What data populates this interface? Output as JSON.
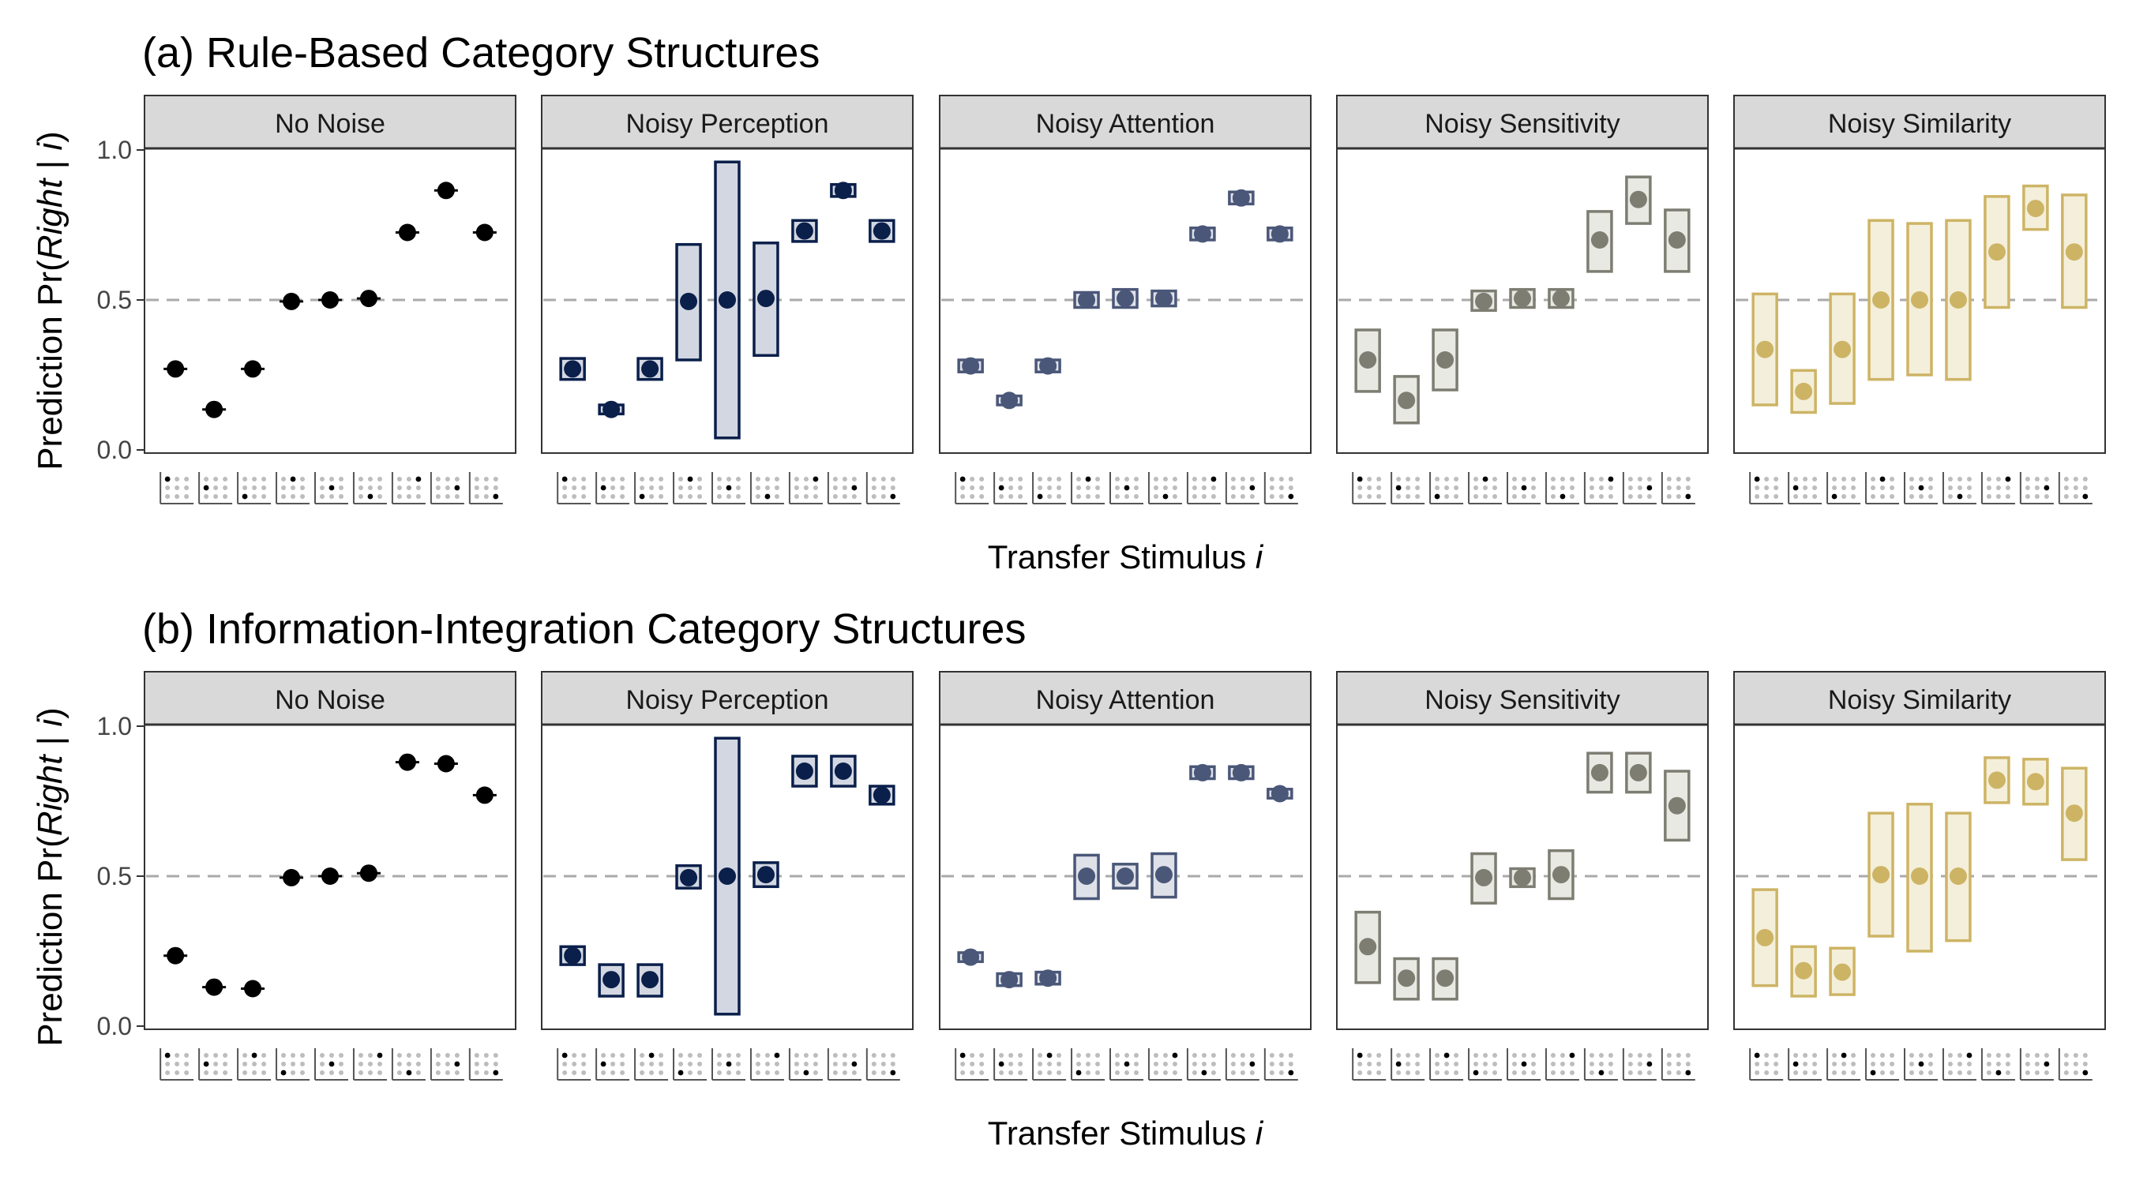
{
  "figure": {
    "y_axis_label": {
      "prefix": "Prediction Pr(",
      "italic": "Right",
      "sep": " | ",
      "var": "i",
      "suffix": ")"
    },
    "x_axis_label": {
      "text": "Transfer Stimulus ",
      "var": "i"
    },
    "reference_line": 0.5
  },
  "colors": {
    "No Noise": {
      "stroke": "#000000",
      "fill": "#000000",
      "point": "#000000"
    },
    "Noisy Perception": {
      "stroke": "#0a1f4a",
      "fill": "#d3d7e2",
      "point": "#0a1f4a"
    },
    "Noisy Attention": {
      "stroke": "#4a5778",
      "fill": "#dfe1e9",
      "point": "#4a5778"
    },
    "Noisy Sensitivity": {
      "stroke": "#7d7d72",
      "fill": "#e9e9e4",
      "point": "#7d7d72"
    },
    "Noisy Similarity": {
      "stroke": "#cdb465",
      "fill": "#f4efda",
      "point": "#cdb465"
    }
  },
  "chart_data": [
    {
      "type": "scatter",
      "title": "(a) Rule-Based Category Structures",
      "ylim": [
        0,
        1
      ],
      "yticks": [
        0.0,
        0.5,
        1.0
      ],
      "ytick_labels": [
        "0.0",
        "0.5",
        "1.0"
      ],
      "stimuli": [
        {
          "row": 0,
          "col": 0
        },
        {
          "row": 1,
          "col": 0
        },
        {
          "row": 2,
          "col": 0
        },
        {
          "row": 0,
          "col": 1
        },
        {
          "row": 1,
          "col": 1
        },
        {
          "row": 2,
          "col": 1
        },
        {
          "row": 0,
          "col": 2
        },
        {
          "row": 1,
          "col": 2
        },
        {
          "row": 2,
          "col": 2
        }
      ],
      "panels": [
        {
          "name": "No Noise",
          "values": [
            0.27,
            0.135,
            0.27,
            0.495,
            0.5,
            0.505,
            0.725,
            0.865,
            0.725
          ],
          "low": [
            0.27,
            0.135,
            0.27,
            0.495,
            0.5,
            0.505,
            0.725,
            0.865,
            0.725
          ],
          "high": [
            0.27,
            0.135,
            0.27,
            0.495,
            0.5,
            0.505,
            0.725,
            0.865,
            0.725
          ]
        },
        {
          "name": "Noisy Perception",
          "values": [
            0.27,
            0.135,
            0.27,
            0.495,
            0.5,
            0.505,
            0.73,
            0.865,
            0.73
          ],
          "low": [
            0.235,
            0.12,
            0.235,
            0.3,
            0.04,
            0.315,
            0.695,
            0.845,
            0.695
          ],
          "high": [
            0.305,
            0.15,
            0.305,
            0.685,
            0.96,
            0.69,
            0.765,
            0.885,
            0.765
          ]
        },
        {
          "name": "Noisy Attention",
          "values": [
            0.28,
            0.165,
            0.28,
            0.5,
            0.505,
            0.505,
            0.72,
            0.84,
            0.72
          ],
          "low": [
            0.26,
            0.15,
            0.26,
            0.475,
            0.475,
            0.48,
            0.7,
            0.82,
            0.7
          ],
          "high": [
            0.3,
            0.18,
            0.3,
            0.525,
            0.535,
            0.53,
            0.74,
            0.86,
            0.74
          ]
        },
        {
          "name": "Noisy Sensitivity",
          "values": [
            0.3,
            0.165,
            0.3,
            0.495,
            0.505,
            0.505,
            0.7,
            0.835,
            0.7
          ],
          "low": [
            0.195,
            0.09,
            0.2,
            0.465,
            0.475,
            0.475,
            0.595,
            0.755,
            0.595
          ],
          "high": [
            0.4,
            0.245,
            0.4,
            0.53,
            0.535,
            0.535,
            0.795,
            0.91,
            0.8
          ]
        },
        {
          "name": "Noisy Similarity",
          "values": [
            0.335,
            0.195,
            0.335,
            0.5,
            0.5,
            0.5,
            0.66,
            0.805,
            0.66
          ],
          "low": [
            0.15,
            0.125,
            0.155,
            0.235,
            0.25,
            0.235,
            0.475,
            0.735,
            0.475
          ],
          "high": [
            0.52,
            0.265,
            0.52,
            0.765,
            0.755,
            0.765,
            0.845,
            0.88,
            0.85
          ]
        }
      ]
    },
    {
      "type": "scatter",
      "title": "(b) Information-Integration Category Structures",
      "ylim": [
        0,
        1
      ],
      "yticks": [
        0.0,
        0.5,
        1.0
      ],
      "ytick_labels": [
        "0.0",
        "0.5",
        "1.0"
      ],
      "stimuli": [
        {
          "row": 0,
          "col": 0
        },
        {
          "row": 1,
          "col": 0
        },
        {
          "row": 0,
          "col": 1
        },
        {
          "row": 2,
          "col": 0
        },
        {
          "row": 1,
          "col": 1
        },
        {
          "row": 0,
          "col": 2
        },
        {
          "row": 2,
          "col": 1
        },
        {
          "row": 1,
          "col": 2
        },
        {
          "row": 2,
          "col": 2
        }
      ],
      "panels": [
        {
          "name": "No Noise",
          "values": [
            0.235,
            0.13,
            0.125,
            0.495,
            0.5,
            0.51,
            0.88,
            0.875,
            0.77
          ],
          "low": [
            0.235,
            0.13,
            0.125,
            0.495,
            0.5,
            0.51,
            0.88,
            0.875,
            0.77
          ],
          "high": [
            0.235,
            0.13,
            0.125,
            0.495,
            0.5,
            0.51,
            0.88,
            0.875,
            0.77
          ]
        },
        {
          "name": "Noisy Perception",
          "values": [
            0.235,
            0.155,
            0.155,
            0.495,
            0.5,
            0.505,
            0.85,
            0.85,
            0.77
          ],
          "low": [
            0.205,
            0.1,
            0.1,
            0.46,
            0.04,
            0.465,
            0.8,
            0.8,
            0.74
          ],
          "high": [
            0.265,
            0.205,
            0.205,
            0.535,
            0.96,
            0.545,
            0.9,
            0.9,
            0.8
          ]
        },
        {
          "name": "Noisy Attention",
          "values": [
            0.23,
            0.155,
            0.16,
            0.5,
            0.5,
            0.505,
            0.845,
            0.845,
            0.775
          ],
          "low": [
            0.215,
            0.135,
            0.14,
            0.425,
            0.46,
            0.43,
            0.825,
            0.825,
            0.76
          ],
          "high": [
            0.245,
            0.175,
            0.18,
            0.57,
            0.54,
            0.575,
            0.865,
            0.865,
            0.79
          ]
        },
        {
          "name": "Noisy Sensitivity",
          "values": [
            0.265,
            0.16,
            0.16,
            0.495,
            0.495,
            0.505,
            0.845,
            0.845,
            0.735
          ],
          "low": [
            0.145,
            0.09,
            0.09,
            0.41,
            0.465,
            0.425,
            0.78,
            0.78,
            0.62
          ],
          "high": [
            0.38,
            0.225,
            0.225,
            0.575,
            0.525,
            0.585,
            0.91,
            0.91,
            0.85
          ]
        },
        {
          "name": "Noisy Similarity",
          "values": [
            0.295,
            0.185,
            0.18,
            0.505,
            0.5,
            0.5,
            0.82,
            0.815,
            0.71
          ],
          "low": [
            0.135,
            0.1,
            0.105,
            0.3,
            0.25,
            0.285,
            0.745,
            0.74,
            0.555
          ],
          "high": [
            0.455,
            0.265,
            0.26,
            0.71,
            0.74,
            0.71,
            0.895,
            0.89,
            0.86
          ]
        }
      ]
    }
  ]
}
